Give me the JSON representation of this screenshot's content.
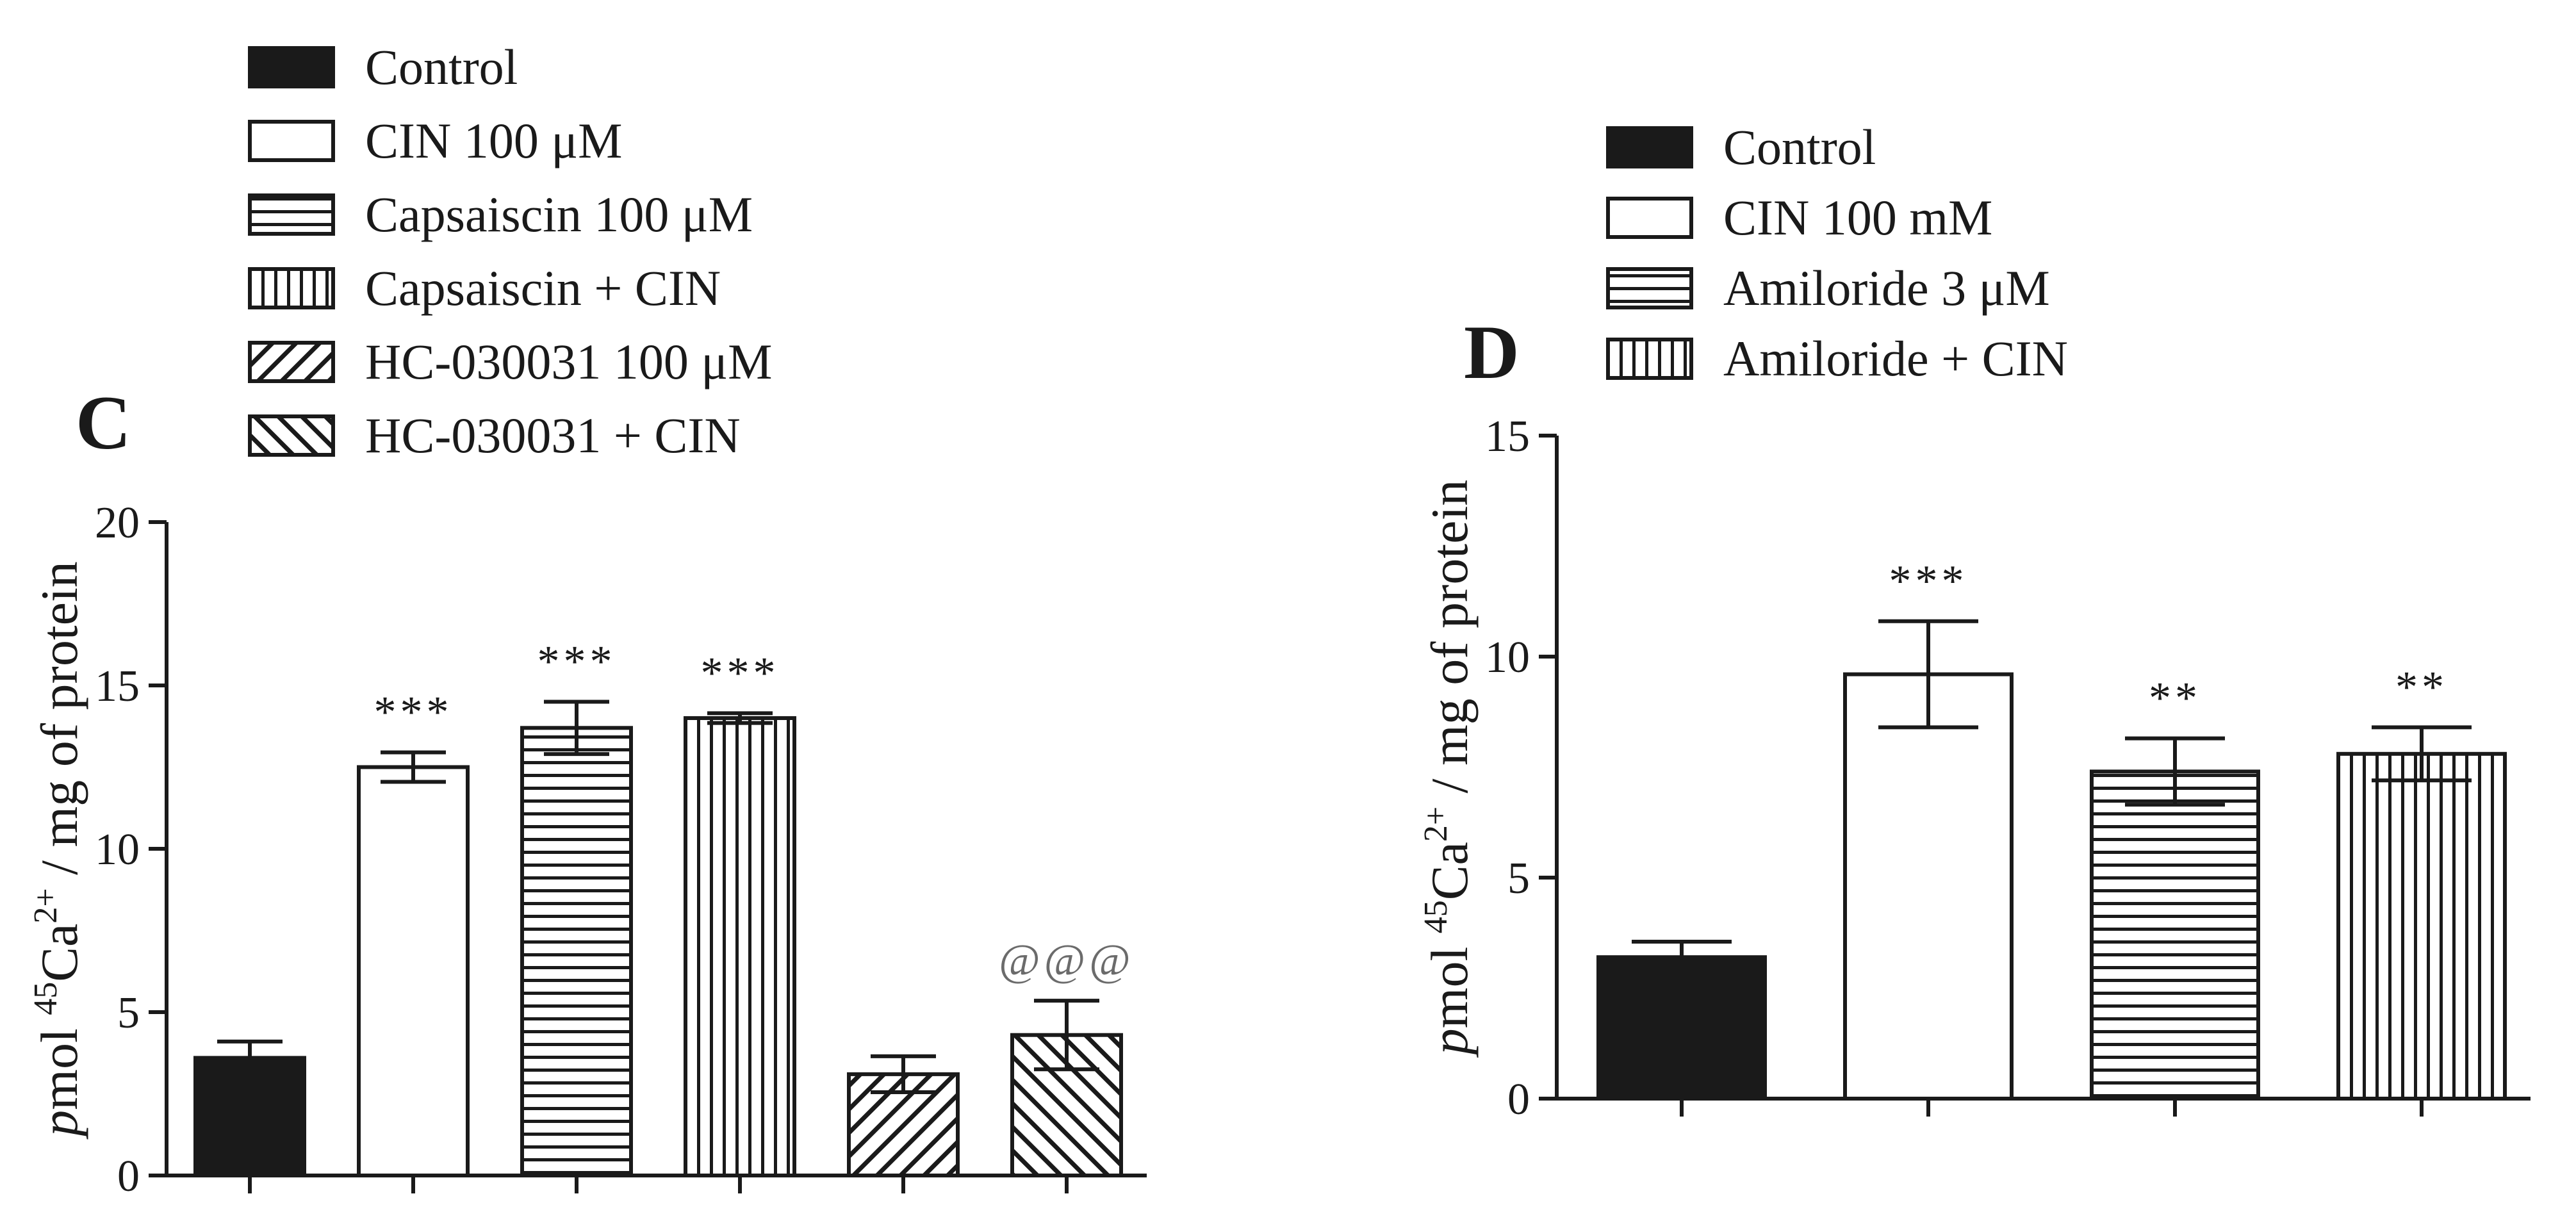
{
  "chart_data": [
    {
      "type": "bar",
      "panel_label": "C",
      "ylabel": "pmol 45Ca2+ / mg of protein",
      "ylabel_parts": {
        "italic": "p",
        "mid": "mol ",
        "sup1": "45",
        "base": "Ca",
        "sup2": "2+",
        "tail": " / mg of protein"
      },
      "ylim": [
        0,
        20
      ],
      "yticks": [
        "0",
        "5",
        "10",
        "15",
        "20"
      ],
      "legend_position": "top",
      "categories": [
        "Control",
        "CIN 100 μM",
        "Capsaiscin 100 μM",
        "Capsaiscin + CIN",
        "HC-030031 100 μM",
        "HC-030031 + CIN"
      ],
      "values": [
        3.6,
        12.5,
        13.7,
        14.0,
        3.1,
        4.3
      ],
      "errors": [
        0.5,
        0.45,
        0.8,
        0.15,
        0.55,
        1.05
      ],
      "patterns": [
        "solid",
        "empty",
        "hlines",
        "vlines",
        "diag",
        "diag-rev"
      ],
      "annotations": [
        "",
        "***",
        "***",
        "***",
        "",
        "@@@"
      ],
      "annotation_colors": [
        "#1a1a1a",
        "#1a1a1a",
        "#1a1a1a",
        "#1a1a1a",
        "#1a1a1a",
        "#6b6b6b"
      ]
    },
    {
      "type": "bar",
      "panel_label": "D",
      "ylabel": "pmol 45Ca2+ / mg of protein",
      "ylabel_parts": {
        "italic": "p",
        "mid": "mol ",
        "sup1": "45",
        "base": "Ca",
        "sup2": "2+",
        "tail": " / mg of protein"
      },
      "ylim": [
        0,
        15
      ],
      "yticks": [
        "0",
        "5",
        "10",
        "15"
      ],
      "legend_position": "top",
      "categories": [
        "Control",
        "CIN 100 mM",
        "Amiloride 3 μM",
        "Amiloride + CIN"
      ],
      "values": [
        3.2,
        9.6,
        7.4,
        7.8
      ],
      "errors": [
        0.35,
        1.2,
        0.75,
        0.6
      ],
      "patterns": [
        "solid",
        "empty",
        "hlines",
        "vlines"
      ],
      "annotations": [
        "",
        "***",
        "**",
        "**"
      ],
      "annotation_colors": [
        "#1a1a1a",
        "#1a1a1a",
        "#1a1a1a",
        "#1a1a1a"
      ]
    }
  ]
}
